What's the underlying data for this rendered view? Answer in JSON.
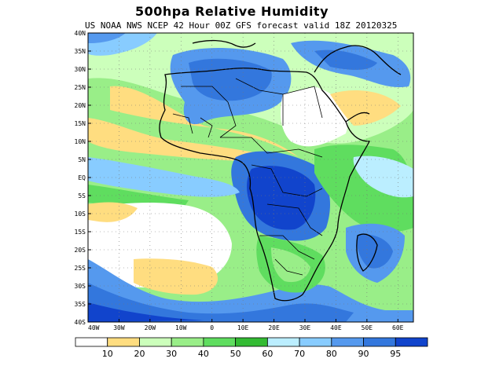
{
  "title": "500hpa Relative Humidity",
  "subtitle": "US NOAA NWS NCEP 42 Hour 00Z GFS forecast valid 18Z 20120325",
  "lat_labels": [
    "40N",
    "35N",
    "30N",
    "25N",
    "20N",
    "15N",
    "10N",
    "5N",
    "EQ",
    "5S",
    "10S",
    "15S",
    "20S",
    "25S",
    "30S",
    "35S",
    "40S"
  ],
  "lon_labels": [
    "40W",
    "30W",
    "20W",
    "10W",
    "0",
    "10E",
    "20E",
    "30E",
    "40E",
    "50E",
    "60E"
  ],
  "colorbar": {
    "colors": [
      "#ffffff",
      "#ffdd80",
      "#ccffbb",
      "#99ee88",
      "#5fdd5f",
      "#33bb33",
      "#bbeeff",
      "#88ccff",
      "#5599ee",
      "#3377dd",
      "#1144cc"
    ],
    "labels": [
      "10",
      "20",
      "30",
      "40",
      "50",
      "60",
      "70",
      "80",
      "90",
      "95"
    ]
  }
}
